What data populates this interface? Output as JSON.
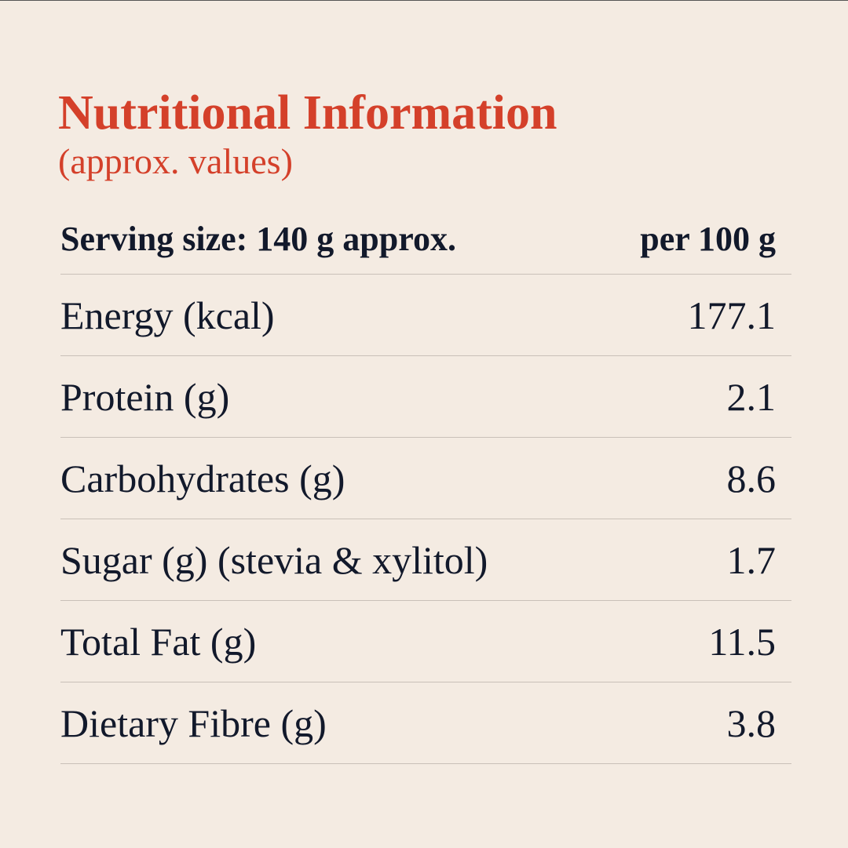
{
  "header": {
    "title": "Nutritional Information",
    "subtitle": "(approx. values)"
  },
  "table": {
    "header": [
      "Serving size: 140 g approx.",
      "per 100 g"
    ],
    "rows": [
      [
        "Energy (kcal)",
        "177.1"
      ],
      [
        "Protein (g)",
        "2.1"
      ],
      [
        "Carbohydrates (g)",
        "8.6"
      ],
      [
        "Sugar (g) (stevia & xylitol)",
        "1.7"
      ],
      [
        "Total Fat (g)",
        "11.5"
      ],
      [
        "Dietary Fibre (g)",
        "3.8"
      ]
    ]
  }
}
